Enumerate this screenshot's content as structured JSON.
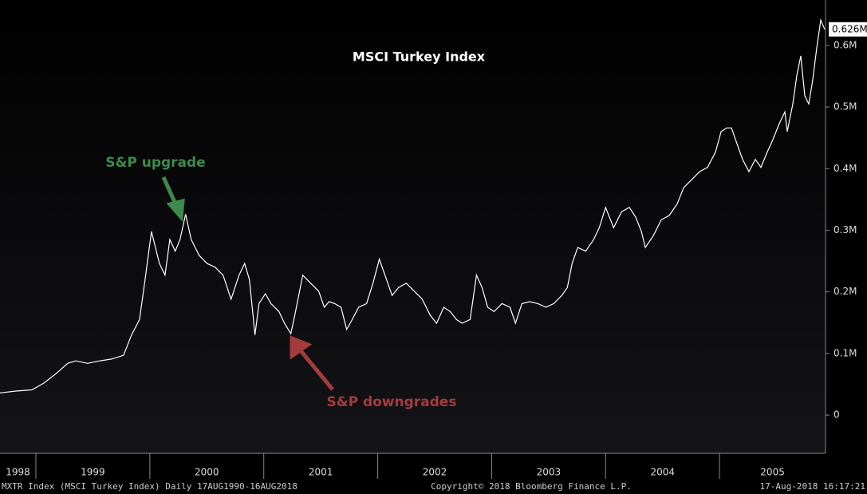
{
  "chart_data": {
    "type": "line",
    "title": "MSCI Turkey Index",
    "color": "#ffffff",
    "grid": false,
    "x": [
      1998.685,
      1998.825,
      1998.965,
      1999.07,
      1999.175,
      1999.279,
      1999.349,
      1999.454,
      1999.559,
      1999.664,
      1999.769,
      1999.839,
      1999.909,
      1999.958,
      2000.014,
      2000.049,
      2000.084,
      2000.133,
      2000.175,
      2000.223,
      2000.265,
      2000.314,
      2000.363,
      2000.433,
      2000.503,
      2000.573,
      2000.643,
      2000.713,
      2000.783,
      2000.832,
      2000.874,
      2000.923,
      2000.958,
      2001.014,
      2001.063,
      2001.133,
      2001.182,
      2001.237,
      2001.272,
      2001.342,
      2001.412,
      2001.482,
      2001.531,
      2001.573,
      2001.622,
      2001.678,
      2001.727,
      2001.776,
      2001.832,
      2001.902,
      2001.958,
      2002.014,
      2002.077,
      2002.126,
      2002.182,
      2002.251,
      2002.321,
      2002.391,
      2002.461,
      2002.517,
      2002.58,
      2002.636,
      2002.692,
      2002.741,
      2002.811,
      2002.867,
      2002.916,
      2002.965,
      2003.021,
      2003.091,
      2003.161,
      2003.209,
      2003.265,
      2003.335,
      2003.405,
      2003.475,
      2003.545,
      2003.615,
      2003.664,
      2003.706,
      2003.755,
      2003.825,
      2003.895,
      2003.944,
      2004.0,
      2004.07,
      2004.14,
      2004.209,
      2004.265,
      2004.314,
      2004.349,
      2004.419,
      2004.489,
      2004.559,
      2004.629,
      2004.685,
      2004.755,
      2004.825,
      2004.895,
      2004.965,
      2005.014,
      2005.063,
      2005.105,
      2005.154,
      2005.202,
      2005.258,
      2005.314,
      2005.363,
      2005.419,
      2005.468,
      2005.524,
      2005.573,
      2005.594,
      2005.643,
      2005.678,
      2005.713,
      2005.748,
      2005.783,
      2005.818,
      2005.853,
      2005.888,
      2005.923
    ],
    "values": [
      0.036,
      0.039,
      0.041,
      0.052,
      0.067,
      0.084,
      0.088,
      0.084,
      0.088,
      0.091,
      0.097,
      0.13,
      0.155,
      0.22,
      0.298,
      0.272,
      0.246,
      0.227,
      0.285,
      0.266,
      0.285,
      0.326,
      0.285,
      0.259,
      0.246,
      0.24,
      0.227,
      0.188,
      0.227,
      0.246,
      0.22,
      0.13,
      0.181,
      0.197,
      0.181,
      0.168,
      0.149,
      0.132,
      0.162,
      0.227,
      0.214,
      0.201,
      0.175,
      0.184,
      0.181,
      0.175,
      0.139,
      0.155,
      0.175,
      0.181,
      0.214,
      0.253,
      0.22,
      0.194,
      0.207,
      0.214,
      0.201,
      0.188,
      0.162,
      0.149,
      0.175,
      0.168,
      0.155,
      0.149,
      0.155,
      0.227,
      0.207,
      0.175,
      0.168,
      0.181,
      0.175,
      0.149,
      0.181,
      0.184,
      0.181,
      0.175,
      0.181,
      0.194,
      0.207,
      0.246,
      0.272,
      0.266,
      0.285,
      0.304,
      0.337,
      0.304,
      0.33,
      0.337,
      0.321,
      0.298,
      0.272,
      0.291,
      0.317,
      0.324,
      0.343,
      0.369,
      0.382,
      0.395,
      0.402,
      0.427,
      0.46,
      0.466,
      0.466,
      0.44,
      0.415,
      0.395,
      0.415,
      0.402,
      0.427,
      0.447,
      0.473,
      0.492,
      0.46,
      0.505,
      0.551,
      0.583,
      0.518,
      0.505,
      0.544,
      0.596,
      0.641,
      0.626
    ],
    "xlim": [
      1998.685,
      2005.93
    ],
    "xticks": [
      1998,
      1999,
      2000,
      2001,
      2002,
      2003,
      2004,
      2005
    ],
    "ylim": [
      -0.062,
      0.6736
    ],
    "yticks": [
      0,
      {
        "value": 0.1,
        "label": "0.1M"
      },
      {
        "value": 0.2,
        "label": "0.2M"
      },
      {
        "value": 0.3,
        "label": "0.3M"
      },
      {
        "value": 0.4,
        "label": "0.4M"
      },
      {
        "value": 0.5,
        "label": "0.5M"
      },
      {
        "value": 0.6,
        "label": "0.6M"
      }
    ],
    "last_value": {
      "value": 0.626,
      "label": "0.626M"
    },
    "annotations": [
      {
        "text": "S&P upgrade",
        "color": "#3d8a4c"
      },
      {
        "text": "S&P downgrades",
        "color": "#a33c3c"
      }
    ],
    "footer": {
      "left": "MXTR Index (MSCI Turkey Index)  Daily 17AUG1990-16AUG2018",
      "center": "Copyright© 2018 Bloomberg Finance L.P.",
      "right": "17-Aug-2018 16:17:21"
    }
  }
}
